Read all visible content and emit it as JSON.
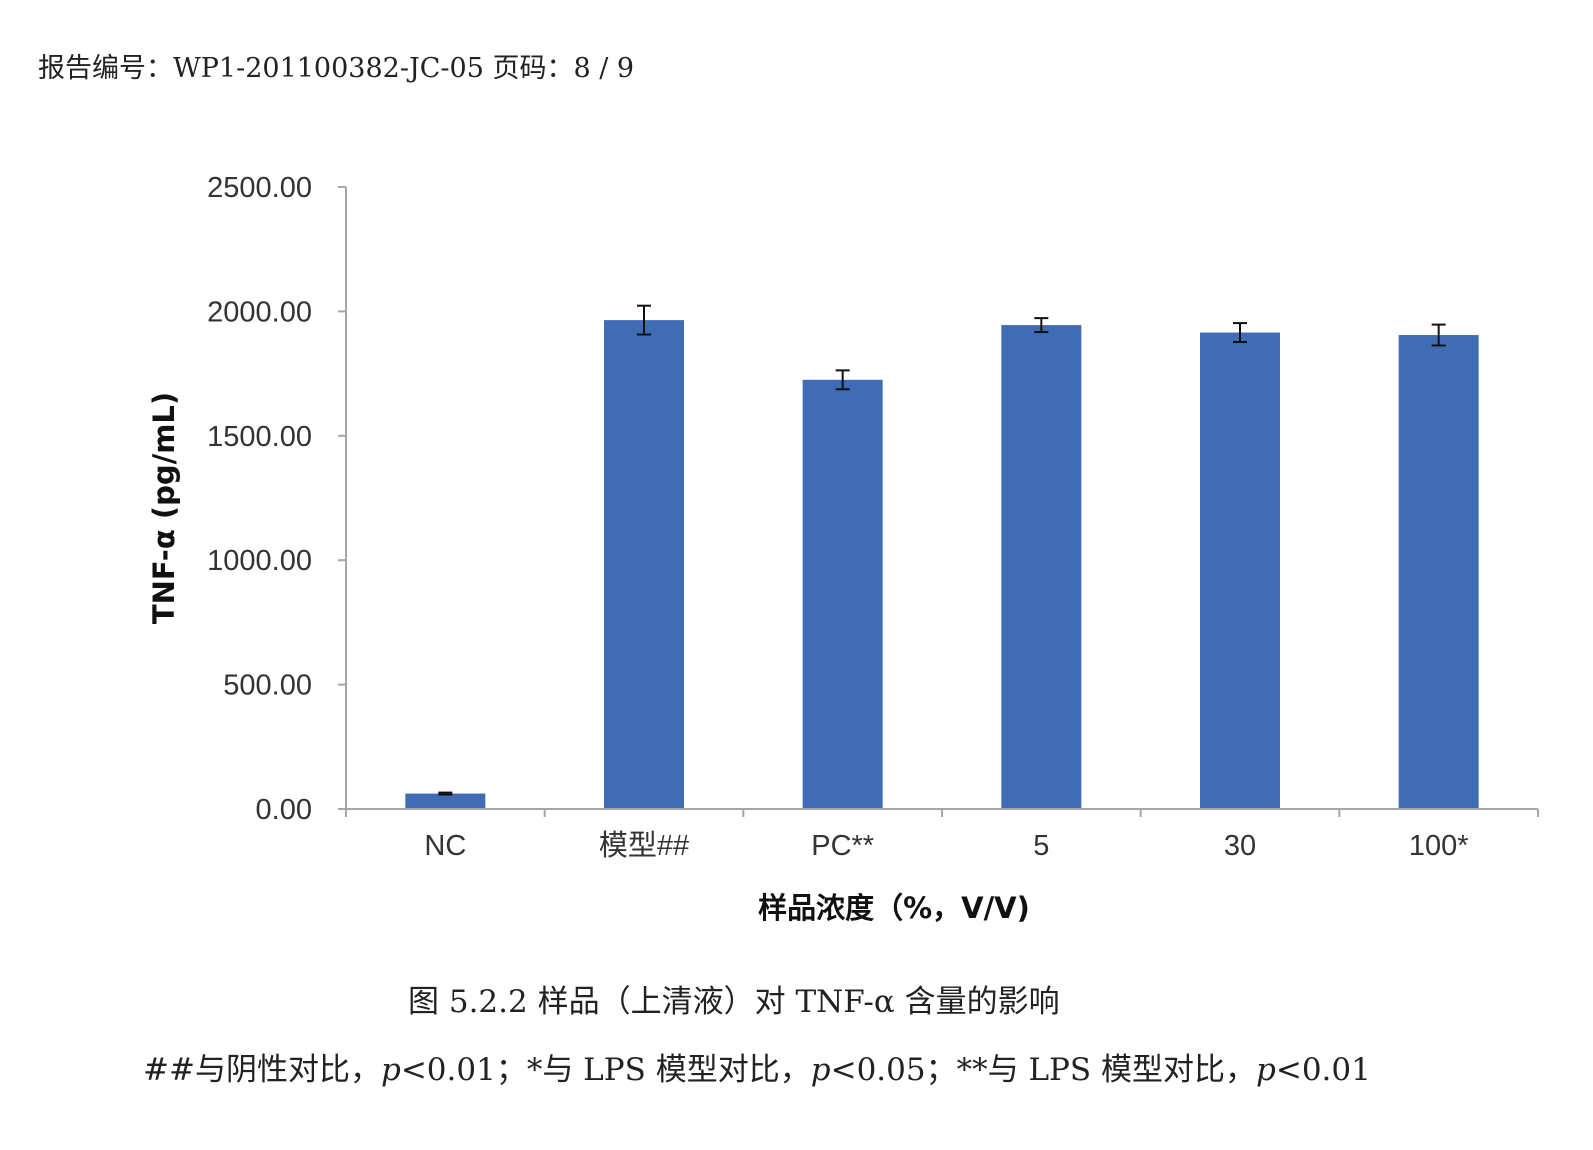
{
  "header": {
    "report_label": "报告编号：WP1-201100382-JC-05 页码：8 / 9"
  },
  "chart_data": {
    "type": "bar",
    "title": "",
    "xlabel": "样品浓度（%，V/V)",
    "ylabel": "TNF-α (pg/mL)",
    "ylim": [
      0,
      2500
    ],
    "yticks": [
      "0.00",
      "500.00",
      "1000.00",
      "1500.00",
      "2000.00",
      "2500.00"
    ],
    "categories": [
      "NC",
      "模型##",
      "PC**",
      "5",
      "30",
      "100*"
    ],
    "values": [
      62,
      1965,
      1725,
      1945,
      1915,
      1905
    ],
    "errors": [
      4,
      58,
      38,
      28,
      38,
      42
    ],
    "bar_color": "#3F6CB4",
    "grid": false
  },
  "caption": {
    "title": "图 5.2.2 样品（上清液）对 TNF-α 含量的影响",
    "note": "##与阴性对比，p<0.01；*与 LPS 模型对比，p<0.05；**与 LPS 模型对比，p<0.01"
  }
}
